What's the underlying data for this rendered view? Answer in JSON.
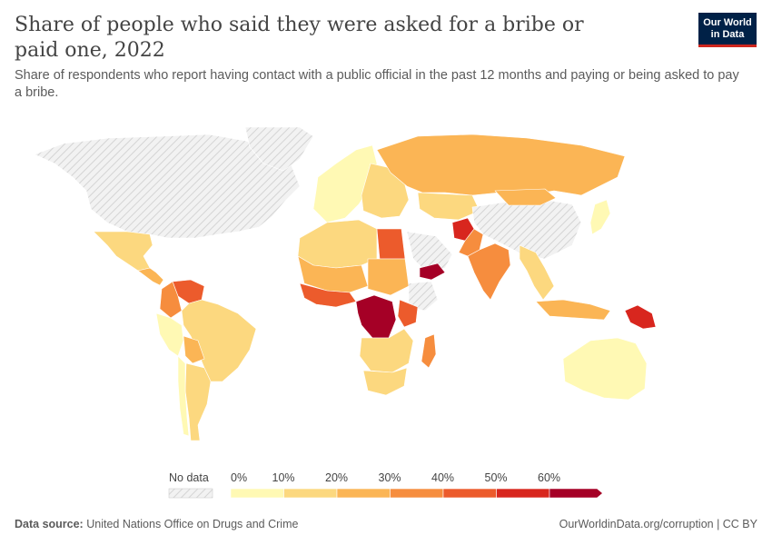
{
  "header": {
    "title": "Share of people who said they were asked for a bribe or paid one, 2022",
    "subtitle": "Share of respondents who report having contact with a public official in the past 12 months and paying or being asked to pay a bribe.",
    "logo_line1": "Our World",
    "logo_line2": "in Data"
  },
  "legend": {
    "no_data_label": "No data",
    "ticks": [
      "0%",
      "10%",
      "20%",
      "30%",
      "40%",
      "50%",
      "60%"
    ],
    "colors": [
      "#fff9b4",
      "#fcd87f",
      "#fbb555",
      "#f68d3e",
      "#ec5b2c",
      "#d8261e",
      "#a50026"
    ],
    "no_data_color": "#e6e6e6"
  },
  "footer": {
    "source_label": "Data source:",
    "source_text": "United Nations Office on Drugs and Crime",
    "url_text": "OurWorldinData.org/corruption | CC BY"
  },
  "map_regions": [
    {
      "name": "North America",
      "bin": "none"
    },
    {
      "name": "Greenland",
      "bin": "none"
    },
    {
      "name": "Mexico",
      "bin": 1
    },
    {
      "name": "Central America",
      "bin": 2
    },
    {
      "name": "Venezuela",
      "bin": 4
    },
    {
      "name": "Colombia",
      "bin": 3
    },
    {
      "name": "Brazil",
      "bin": 1
    },
    {
      "name": "Peru",
      "bin": 0
    },
    {
      "name": "Bolivia",
      "bin": 2
    },
    {
      "name": "Argentina",
      "bin": 1
    },
    {
      "name": "Chile",
      "bin": 0
    },
    {
      "name": "Western Europe",
      "bin": 0
    },
    {
      "name": "Eastern Europe",
      "bin": 1
    },
    {
      "name": "Russia",
      "bin": 2
    },
    {
      "name": "Kazakhstan",
      "bin": 1
    },
    {
      "name": "China",
      "bin": "none"
    },
    {
      "name": "Mongolia",
      "bin": 2
    },
    {
      "name": "Afghanistan",
      "bin": 5
    },
    {
      "name": "Pakistan",
      "bin": 3
    },
    {
      "name": "India",
      "bin": 3
    },
    {
      "name": "Southeast Asia",
      "bin": 1
    },
    {
      "name": "Indonesia",
      "bin": 2
    },
    {
      "name": "Papua New Guinea",
      "bin": 5
    },
    {
      "name": "Australia",
      "bin": 0
    },
    {
      "name": "Japan",
      "bin": 0
    },
    {
      "name": "North Africa",
      "bin": 1
    },
    {
      "name": "Egypt",
      "bin": 4
    },
    {
      "name": "Arabian Peninsula",
      "bin": "none"
    },
    {
      "name": "Yemen",
      "bin": 6
    },
    {
      "name": "Sahel",
      "bin": 2
    },
    {
      "name": "West Africa",
      "bin": 4
    },
    {
      "name": "Sudan",
      "bin": 2
    },
    {
      "name": "Ethiopia",
      "bin": "none"
    },
    {
      "name": "DR Congo",
      "bin": 6
    },
    {
      "name": "Kenya",
      "bin": 4
    },
    {
      "name": "Southern Africa",
      "bin": 1
    },
    {
      "name": "South Africa",
      "bin": 1
    },
    {
      "name": "Madagascar",
      "bin": 3
    }
  ]
}
